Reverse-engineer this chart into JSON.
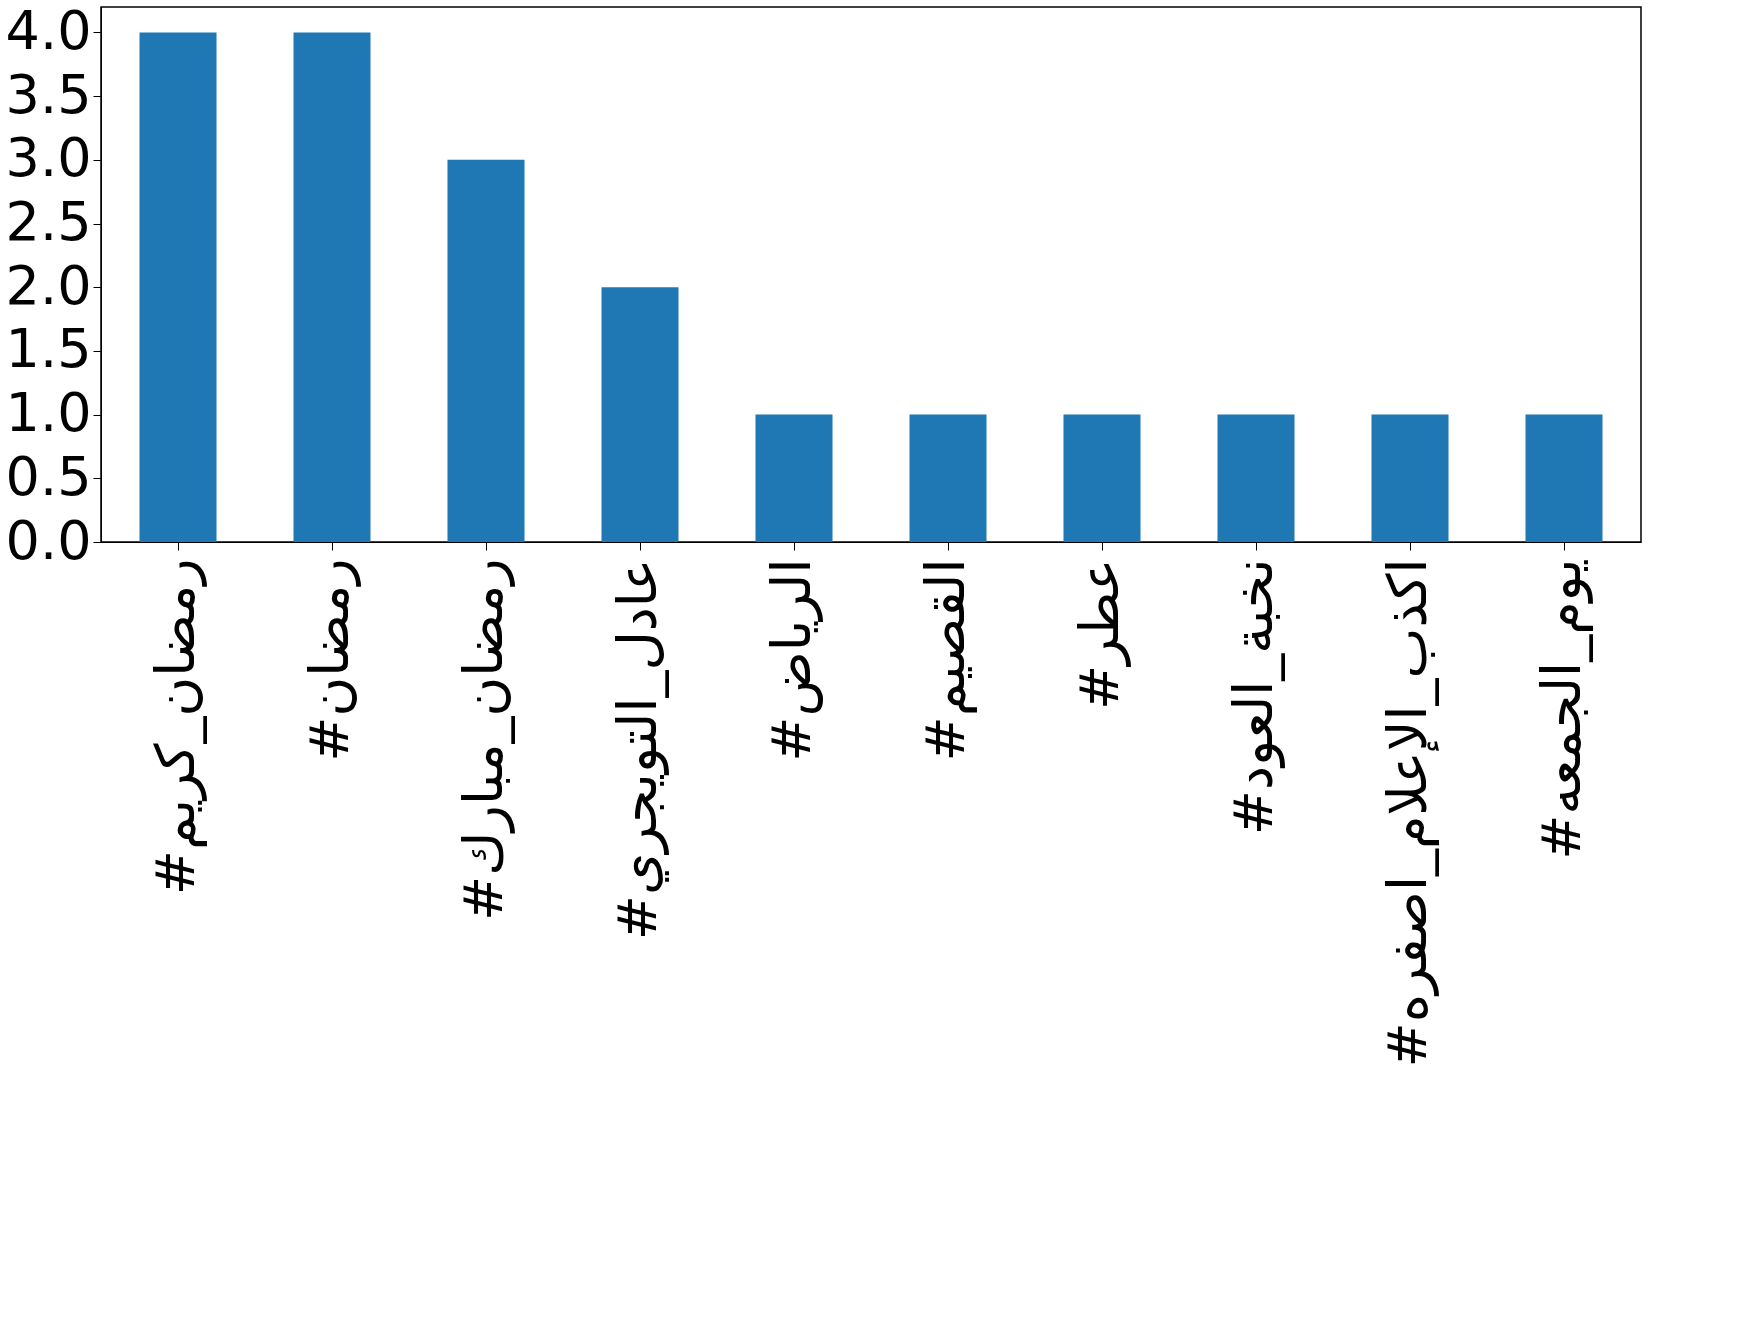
{
  "chart_data": {
    "type": "bar",
    "categories": [
      "#رمضان_كريم",
      "#رمضان",
      "#رمضان_مبارك",
      "#عادل_التويجري",
      "#الرياض",
      "#القصيم",
      "#عطر",
      "#نخبة_العود",
      "#اكذب_الإعلام_اصفره",
      "#يوم_الجمعه"
    ],
    "values": [
      4,
      4,
      3,
      2,
      1,
      1,
      1,
      1,
      1,
      1
    ],
    "color": "#1f77b4",
    "ylim": [
      0,
      4.2
    ],
    "yticks": [
      {
        "value": 0,
        "label": "0.0"
      },
      0.5,
      {
        "value": 1,
        "label": "1.0"
      },
      1.5,
      {
        "value": 2,
        "label": "2.0"
      },
      2.5,
      {
        "value": 3,
        "label": "3.0"
      },
      3.5,
      {
        "value": 4,
        "label": "4.0"
      }
    ]
  }
}
